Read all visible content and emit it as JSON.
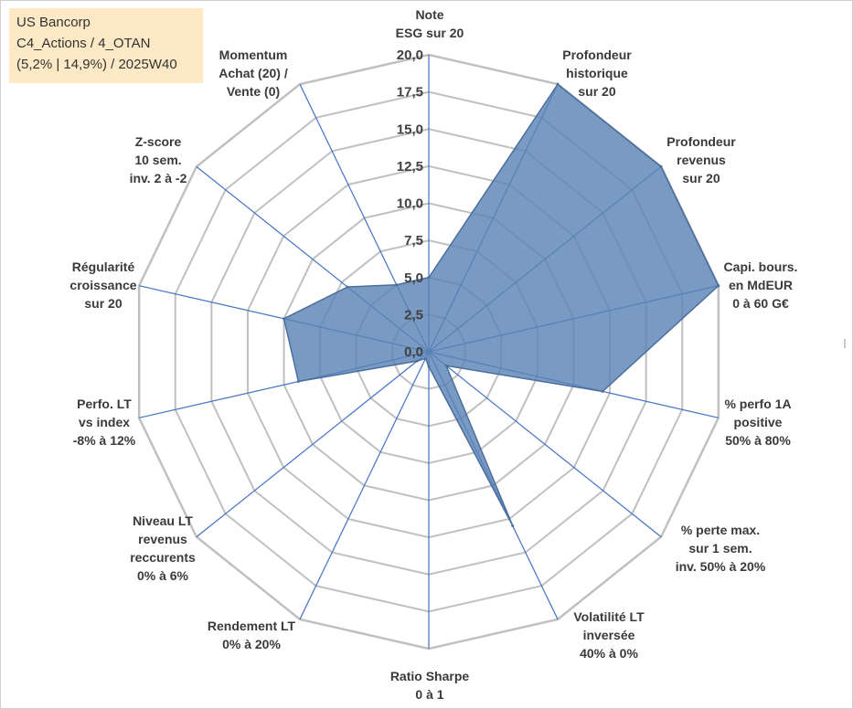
{
  "info": {
    "line1": "US Bancorp",
    "line2": "C4_Actions / 4_OTAN",
    "line3": "(5,2% | 14,9%) / 2025W40"
  },
  "colors": {
    "series_fill": "#5b84b5",
    "series_line": "#4a6f9e",
    "spoke": "#4472c4",
    "grid": "#c0c0c0",
    "info_bg": "#fde9c5"
  },
  "chart_data": {
    "type": "radar",
    "title": "",
    "range": [
      0,
      20
    ],
    "tick_step": 2.5,
    "tick_labels": [
      "0,0",
      "2,5",
      "5,0",
      "7,5",
      "10,0",
      "12,5",
      "15,0",
      "17,5",
      "20,0"
    ],
    "axes": [
      {
        "label": [
          "Note",
          "ESG sur 20"
        ]
      },
      {
        "label": [
          "Profondeur",
          "historique",
          "sur 20"
        ]
      },
      {
        "label": [
          "Profondeur",
          "revenus",
          "sur 20"
        ]
      },
      {
        "label": [
          "Capi. bours.",
          "en MdEUR",
          "0 à 60 G€"
        ]
      },
      {
        "label": [
          "% perfo 1A",
          "positive",
          "50% à 80%"
        ]
      },
      {
        "label": [
          "% perte max.",
          "sur 1 sem.",
          "inv. 50% à 20%"
        ]
      },
      {
        "label": [
          "Volatilité LT",
          "inversée",
          "40% à 0%"
        ]
      },
      {
        "label": [
          "Ratio Sharpe",
          "0 à 1"
        ]
      },
      {
        "label": [
          "Rendement LT",
          "0% à 20%"
        ]
      },
      {
        "label": [
          "Niveau LT",
          "revenus",
          "reccurents",
          "0% à 6%"
        ]
      },
      {
        "label": [
          "Perfo. LT",
          "vs index",
          "-8% à 12%"
        ]
      },
      {
        "label": [
          "Régularité",
          "croissance",
          "sur 20"
        ]
      },
      {
        "label": [
          "Z-score",
          "10 sem.",
          "inv. 2 à -2"
        ]
      },
      {
        "label": [
          "Momentum",
          "Achat (20) /",
          "Vente (0)"
        ]
      }
    ],
    "series": [
      {
        "name": "US Bancorp",
        "values": [
          5.0,
          20.0,
          20.0,
          20.0,
          12.0,
          1.5,
          13.0,
          1.0,
          0.5,
          1.0,
          9.0,
          10.0,
          7.0,
          5.0
        ]
      }
    ]
  }
}
